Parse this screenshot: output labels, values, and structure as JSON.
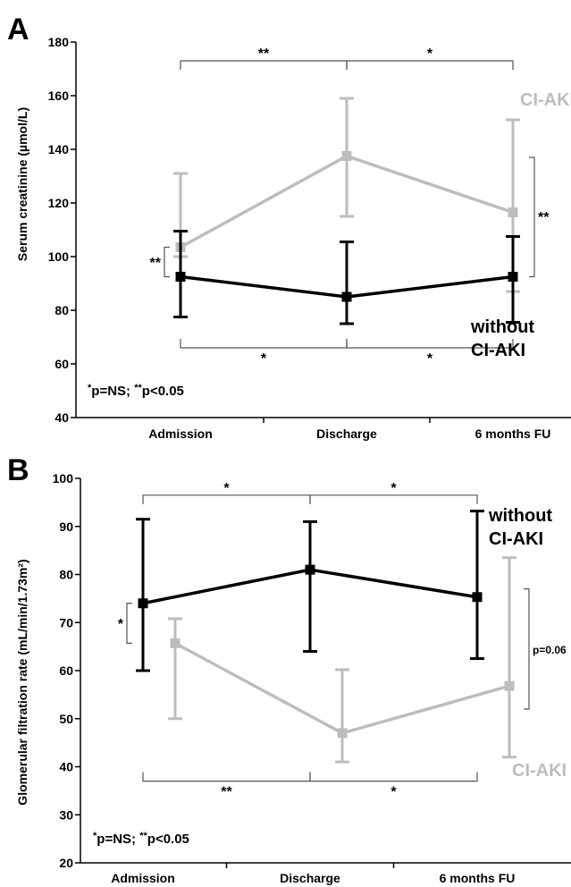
{
  "chart_data": [
    {
      "panel": "A",
      "type": "line",
      "ylabel": "Serum creatinine (µmol/L)",
      "categories": [
        "Admission",
        "Discharge",
        "6 months FU"
      ],
      "ylim": [
        40,
        180
      ],
      "yticks": [
        40,
        60,
        80,
        100,
        120,
        140,
        160,
        180
      ],
      "series": [
        {
          "name": "CI-AKI",
          "color": "#bdbdbd",
          "values": [
            103.5,
            137.5,
            116.5
          ],
          "lower": [
            100,
            115,
            87
          ],
          "upper": [
            131,
            159,
            151
          ]
        },
        {
          "name": "without CI-AKI",
          "color": "#000000",
          "values": [
            92.5,
            85,
            92.5
          ],
          "lower": [
            77.5,
            75,
            75.5
          ],
          "upper": [
            109.5,
            105.5,
            107.5
          ]
        }
      ],
      "annotations": [
        {
          "type": "bracket-top",
          "from": 0,
          "to": 1,
          "y": 173,
          "text": "**"
        },
        {
          "type": "bracket-top",
          "from": 1,
          "to": 2,
          "y": 173,
          "text": "*"
        },
        {
          "type": "bracket-bottom",
          "from": 0,
          "to": 1,
          "y": 66,
          "text": "*"
        },
        {
          "type": "bracket-bottom",
          "from": 1,
          "to": 2,
          "y": 66,
          "text": "*"
        },
        {
          "type": "bracket-side",
          "at": 0,
          "side": "left",
          "y1": 92.5,
          "y2": 103.5,
          "text": "**"
        },
        {
          "type": "bracket-side",
          "at": 2,
          "side": "right",
          "y1": 92.5,
          "y2": 137,
          "text": "**"
        }
      ],
      "note": {
        "star": "*",
        "stars": "**",
        "text1": "p=NS",
        "sep": "; ",
        "text2": "p<0.05"
      },
      "label_without": [
        "without",
        "CI-AKI"
      ]
    },
    {
      "panel": "B",
      "type": "line",
      "ylabel": "Glomerular filtration rate (mL/min/1.73m²)",
      "categories": [
        "Admission",
        "Discharge",
        "6 months FU"
      ],
      "ylim": [
        20,
        100
      ],
      "yticks": [
        20,
        30,
        40,
        50,
        60,
        70,
        80,
        90,
        100
      ],
      "series": [
        {
          "name": "without CI-AKI",
          "color": "#000000",
          "values": [
            74,
            81,
            75.3
          ],
          "lower": [
            60,
            64,
            62.5
          ],
          "upper": [
            91.5,
            91,
            93.2
          ]
        },
        {
          "name": "CI-AKI",
          "color": "#bdbdbd",
          "values": [
            65.7,
            47,
            56.8
          ],
          "lower": [
            50,
            41,
            42
          ],
          "upper": [
            70.8,
            60.2,
            83.5
          ]
        }
      ],
      "annotations": [
        {
          "type": "bracket-top",
          "from": 0,
          "to": 1,
          "y": 96.5,
          "text": "*"
        },
        {
          "type": "bracket-top",
          "from": 1,
          "to": 2,
          "y": 96.5,
          "text": "*"
        },
        {
          "type": "bracket-bottom",
          "from": 0,
          "to": 1,
          "y": 37,
          "text": "**"
        },
        {
          "type": "bracket-bottom",
          "from": 1,
          "to": 2,
          "y": 37,
          "text": "*"
        },
        {
          "type": "bracket-side",
          "at": 0,
          "side": "left",
          "y1": 65.7,
          "y2": 74,
          "text": "*"
        },
        {
          "type": "bracket-side",
          "at": 2,
          "side": "right",
          "y1": 52,
          "y2": 77,
          "text": "p=0.06"
        }
      ],
      "note": {
        "star": "*",
        "stars": "**",
        "text1": "p=NS",
        "sep": "; ",
        "text2": "p<0.05"
      },
      "label_without": [
        "without",
        "CI-AKI"
      ]
    }
  ]
}
